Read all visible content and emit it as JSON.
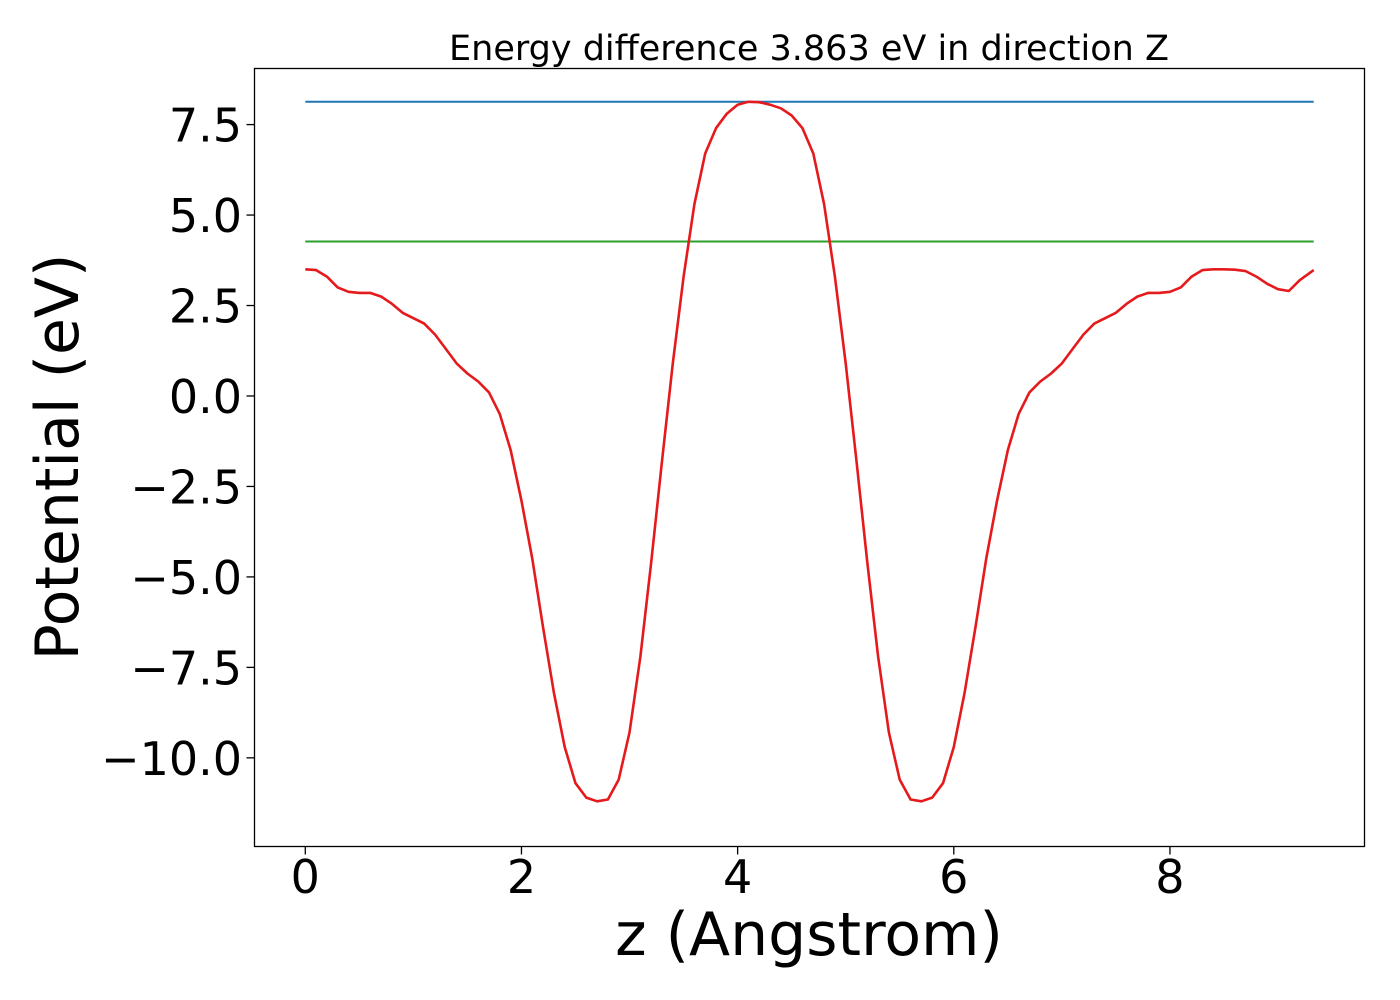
{
  "chart_data": {
    "type": "line",
    "title": "Energy difference 3.863 eV in direction Z",
    "xlabel": "z (Angstrom)",
    "ylabel": "Potential (eV)",
    "xlim": [
      -0.47,
      9.8
    ],
    "ylim": [
      -12.45,
      9.05
    ],
    "xticks": [
      {
        "value": 0,
        "label": "0"
      },
      {
        "value": 2,
        "label": "2"
      },
      {
        "value": 4,
        "label": "4"
      },
      {
        "value": 6,
        "label": "6"
      },
      {
        "value": 8,
        "label": "8"
      }
    ],
    "yticks": [
      {
        "value": 7.5,
        "label": "7.5"
      },
      {
        "value": 5.0,
        "label": "5.0"
      },
      {
        "value": 2.5,
        "label": "2.5"
      },
      {
        "value": 0.0,
        "label": "0.0"
      },
      {
        "value": -2.5,
        "label": "−2.5"
      },
      {
        "value": -5.0,
        "label": "−5.0"
      },
      {
        "value": -7.5,
        "label": "−7.5"
      },
      {
        "value": -10.0,
        "label": "−10.0"
      }
    ],
    "grid": false,
    "legend": "none",
    "series": [
      {
        "color": "#1f77b4",
        "x": [
          0,
          9.33
        ],
        "y": [
          8.13,
          8.13
        ]
      },
      {
        "color": "#2ca02c",
        "x": [
          0,
          9.33
        ],
        "y": [
          4.27,
          4.27
        ]
      },
      {
        "color": "#e41a1c",
        "x": [
          0,
          0.1,
          0.2,
          0.3,
          0.4,
          0.5,
          0.6,
          0.7,
          0.8,
          0.9,
          1.0,
          1.1,
          1.2,
          1.3,
          1.4,
          1.5,
          1.6,
          1.7,
          1.8,
          1.9,
          2.0,
          2.1,
          2.2,
          2.3,
          2.4,
          2.5,
          2.6,
          2.7,
          2.8,
          2.9,
          3.0,
          3.1,
          3.2,
          3.3,
          3.4,
          3.5,
          3.6,
          3.7,
          3.8,
          3.9,
          4.0,
          4.1,
          4.2,
          4.3,
          4.4,
          4.5,
          4.6,
          4.7,
          4.8,
          4.9,
          5.0,
          5.1,
          5.2,
          5.3,
          5.4,
          5.5,
          5.6,
          5.7,
          5.8,
          5.9,
          6.0,
          6.1,
          6.2,
          6.3,
          6.4,
          6.5,
          6.6,
          6.7,
          6.8,
          6.9,
          7.0,
          7.1,
          7.2,
          7.3,
          7.4,
          7.5,
          7.6,
          7.7,
          7.8,
          7.9,
          8.0,
          8.1,
          8.2,
          8.3,
          8.4,
          8.5,
          8.6,
          8.7,
          8.8,
          8.9,
          9.0,
          9.1,
          9.2,
          9.33
        ],
        "y": [
          3.5,
          3.48,
          3.3,
          3.0,
          2.88,
          2.85,
          2.85,
          2.75,
          2.55,
          2.3,
          2.15,
          2.0,
          1.7,
          1.3,
          0.9,
          0.62,
          0.4,
          0.1,
          -0.5,
          -1.5,
          -2.9,
          -4.5,
          -6.4,
          -8.2,
          -9.7,
          -10.7,
          -11.1,
          -11.2,
          -11.15,
          -10.6,
          -9.3,
          -7.2,
          -4.6,
          -1.8,
          0.9,
          3.3,
          5.3,
          6.7,
          7.4,
          7.8,
          8.05,
          8.13,
          8.12,
          8.05,
          7.95,
          7.75,
          7.4,
          6.7,
          5.3,
          3.3,
          0.9,
          -1.8,
          -4.6,
          -7.2,
          -9.3,
          -10.6,
          -11.15,
          -11.2,
          -11.1,
          -10.7,
          -9.7,
          -8.2,
          -6.4,
          -4.5,
          -2.9,
          -1.5,
          -0.5,
          0.1,
          0.4,
          0.62,
          0.9,
          1.3,
          1.7,
          2.0,
          2.15,
          2.3,
          2.55,
          2.75,
          2.85,
          2.85,
          2.88,
          3.0,
          3.3,
          3.48,
          3.5,
          3.5,
          3.49,
          3.45,
          3.3,
          3.1,
          2.95,
          2.9,
          3.2,
          3.48
        ]
      }
    ]
  }
}
